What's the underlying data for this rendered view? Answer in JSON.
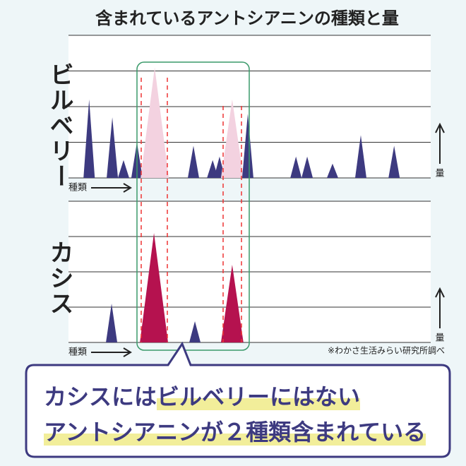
{
  "title": "含まれているアントシアニンの種類と量",
  "chart_data": [
    {
      "type": "peaks",
      "label": "ビルベリー",
      "xlabel": "種類",
      "ylabel": "量",
      "x": [
        5.7,
        12.1,
        15.2,
        18.9,
        23.8,
        34.5,
        39.8,
        41.7,
        45.2,
        49.5,
        62.8,
        65.9,
        72.9,
        80.7,
        89.9
      ],
      "values": [
        2.2,
        1.7,
        0.5,
        1.0,
        3.1,
        0.9,
        0.5,
        0.6,
        2.2,
        1.8,
        0.6,
        0.6,
        0.4,
        1.2,
        0.9
      ],
      "colors": [
        "#3d3a80",
        "#3d3a80",
        "#3d3a80",
        "#3d3a80",
        "#f3d2e0",
        "#3d3a80",
        "#3d3a80",
        "#3d3a80",
        "#f3d2e0",
        "#3d3a80",
        "#3d3a80",
        "#3d3a80",
        "#3d3a80",
        "#3d3a80",
        "#3d3a80"
      ],
      "xlim": [
        0,
        100
      ],
      "ylim": [
        0,
        4
      ],
      "yticks": [
        0,
        1,
        2,
        3,
        4
      ],
      "grid": true
    },
    {
      "type": "peaks",
      "label": "カシス",
      "xlabel": "種類",
      "ylabel": "量",
      "x": [
        11.9,
        23.6,
        34.9,
        45.2
      ],
      "values": [
        1.1,
        3.1,
        0.6,
        2.2
      ],
      "colors": [
        "#3d3a80",
        "#b5124f",
        "#3d3a80",
        "#b5124f"
      ],
      "xlim": [
        0,
        100
      ],
      "ylim": [
        0,
        4
      ],
      "yticks": [
        0,
        1,
        2,
        3,
        4
      ],
      "grid": true
    }
  ],
  "note": "※わかさ生活みらい研究所調べ",
  "callout": {
    "line1": [
      "カシスには",
      "ビルベリーにはない"
    ],
    "line2": "アントシアニンが２種類含まれている"
  }
}
